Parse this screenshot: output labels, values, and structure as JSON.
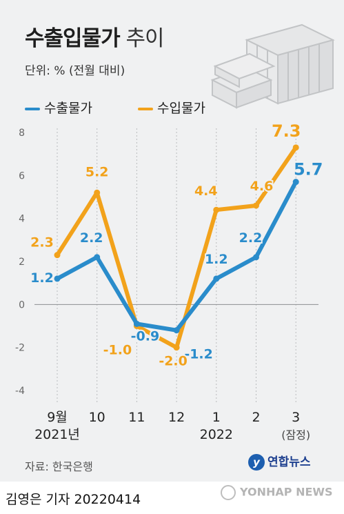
{
  "header": {
    "title_bold": "수출입물가",
    "title_light": "추이",
    "unit": "단위: % (전월 대비)"
  },
  "legend": {
    "export": "수출물가",
    "import": "수입물가"
  },
  "colors": {
    "export": "#2a8ccb",
    "import": "#f2a21b",
    "background": "#f0f1f2"
  },
  "chart_data": {
    "type": "line",
    "categories": [
      "9월\n2021년",
      "10",
      "11",
      "12",
      "1\n2022",
      "2",
      "3\n(잠정)"
    ],
    "series": [
      {
        "name": "수출물가",
        "values": [
          1.2,
          2.2,
          -0.9,
          -1.2,
          1.2,
          2.2,
          5.7
        ],
        "labels": [
          "1.2",
          "2.2",
          "-0.9",
          "-1.2",
          "1.2",
          "2.2",
          "5.7"
        ]
      },
      {
        "name": "수입물가",
        "values": [
          2.3,
          5.2,
          -1.0,
          -2.0,
          4.4,
          4.6,
          7.3
        ],
        "labels": [
          "2.3",
          "5.2",
          "-1.0",
          "-2.0",
          "4.4",
          "4.6",
          "7.3"
        ]
      }
    ],
    "ylim": [
      -4,
      8
    ],
    "yticks": [
      "8",
      "6",
      "4",
      "2",
      "0",
      "-2",
      "-4"
    ],
    "grid": "vertical dotted lines at each category",
    "legend_position": "top-left"
  },
  "footer": {
    "source": "자료: 한국은행",
    "brand": "연합뉴스",
    "reporter": "김영은 기자  20220414",
    "watermark": "YONHAP NEWS"
  }
}
